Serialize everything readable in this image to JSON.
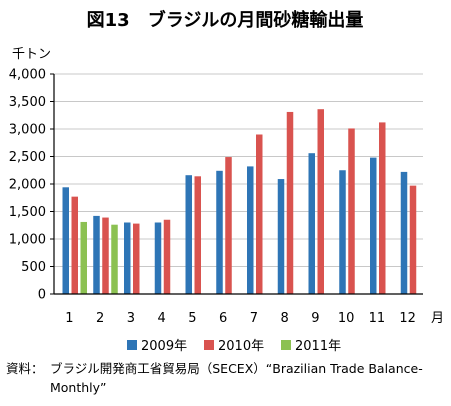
{
  "chart_data": {
    "type": "bar",
    "title": "図13　ブラジルの月間砂糖輸出量",
    "ylabel": "千トン",
    "xlabel": "月",
    "categories": [
      "1",
      "2",
      "3",
      "4",
      "5",
      "6",
      "7",
      "8",
      "9",
      "10",
      "11",
      "12"
    ],
    "ylim": [
      0,
      4000
    ],
    "yticks": [
      "0",
      "500",
      "1,000",
      "1,500",
      "2,000",
      "2,500",
      "3,000",
      "3,500",
      "4,000"
    ],
    "ytick_values": [
      0,
      500,
      1000,
      1500,
      2000,
      2500,
      3000,
      3500,
      4000
    ],
    "series": [
      {
        "name": "2009年",
        "color": "#2e75b6",
        "values": [
          1940,
          1420,
          1300,
          1300,
          2160,
          2240,
          2320,
          2090,
          2560,
          2250,
          2480,
          2220
        ]
      },
      {
        "name": "2010年",
        "color": "#d9534f",
        "values": [
          1770,
          1390,
          1280,
          1350,
          2140,
          2490,
          2900,
          3310,
          3360,
          3010,
          3120,
          1970
        ]
      },
      {
        "name": "2011年",
        "color": "#8cc152",
        "values": [
          1310,
          1260,
          null,
          null,
          null,
          null,
          null,
          null,
          null,
          null,
          null,
          null
        ]
      }
    ],
    "legend_position": "bottom",
    "grid": true
  },
  "source_prefix": "資料：",
  "source_text": "ブラジル開発商工省貿易局（SECEX）“Brazilian Trade Balance-Monthly”"
}
